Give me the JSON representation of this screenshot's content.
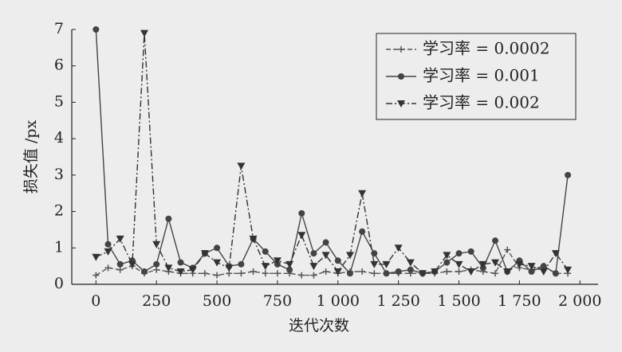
{
  "chart_data": {
    "type": "line",
    "x_label": "迭代次数",
    "y_label": "损失值 /px",
    "x": [
      0,
      50,
      100,
      150,
      200,
      250,
      300,
      350,
      400,
      450,
      500,
      550,
      600,
      650,
      700,
      750,
      800,
      850,
      900,
      950,
      1000,
      1050,
      1100,
      1150,
      1200,
      1250,
      1300,
      1350,
      1400,
      1450,
      1500,
      1550,
      1600,
      1650,
      1700,
      1750,
      1800,
      1850,
      1900,
      1950
    ],
    "series": [
      {
        "name": "学习率 = 0.0002",
        "color": "#555555",
        "linestyle": "dashed",
        "marker": "plus",
        "values": [
          0.25,
          0.45,
          0.4,
          0.5,
          0.3,
          0.4,
          0.35,
          0.3,
          0.3,
          0.3,
          0.25,
          0.3,
          0.3,
          0.35,
          0.3,
          0.3,
          0.3,
          0.25,
          0.25,
          0.35,
          0.3,
          0.35,
          0.35,
          0.3,
          0.3,
          0.3,
          0.3,
          0.3,
          0.3,
          0.35,
          0.35,
          0.4,
          0.35,
          0.3,
          0.95,
          0.45,
          0.4,
          0.5,
          0.3,
          0.3
        ]
      },
      {
        "name": "学习率 = 0.001",
        "color": "#444444",
        "linestyle": "solid",
        "marker": "circle",
        "values": [
          7,
          1.1,
          0.55,
          0.65,
          0.35,
          0.55,
          1.8,
          0.6,
          0.45,
          0.85,
          1.0,
          0.5,
          0.55,
          1.25,
          0.9,
          0.55,
          0.4,
          1.95,
          0.85,
          1.15,
          0.65,
          0.3,
          1.45,
          0.85,
          0.3,
          0.35,
          0.4,
          0.3,
          0.35,
          0.6,
          0.85,
          0.9,
          0.45,
          1.2,
          0.35,
          0.65,
          0.35,
          0.5,
          0.3,
          3.0
        ]
      },
      {
        "name": "学习率 = 0.002",
        "color": "#333333",
        "linestyle": "dashdot",
        "marker": "triangle_down",
        "values": [
          0.75,
          0.9,
          1.25,
          0.55,
          6.9,
          1.1,
          0.45,
          0.35,
          0.4,
          0.85,
          0.6,
          0.45,
          3.25,
          1.25,
          0.5,
          0.65,
          0.55,
          1.35,
          0.5,
          0.8,
          0.35,
          0.8,
          2.5,
          0.55,
          0.55,
          1.0,
          0.6,
          0.3,
          0.35,
          0.8,
          0.55,
          0.35,
          0.55,
          0.6,
          0.35,
          0.55,
          0.5,
          0.35,
          0.85,
          0.4
        ]
      }
    ],
    "xlim": [
      -100,
      2075
    ],
    "ylim": [
      0,
      7
    ],
    "xticks": [
      0,
      250,
      500,
      750,
      {
        "value": 1000,
        "label": "1 000"
      },
      {
        "value": 1250,
        "label": "1 250"
      },
      {
        "value": 1500,
        "label": "1 500"
      },
      {
        "value": 1750,
        "label": "1 750"
      },
      {
        "value": 2000,
        "label": "2 000"
      }
    ],
    "yticks": [
      0,
      1,
      2,
      3,
      4,
      5,
      6,
      7
    ],
    "legend": "upper right"
  }
}
